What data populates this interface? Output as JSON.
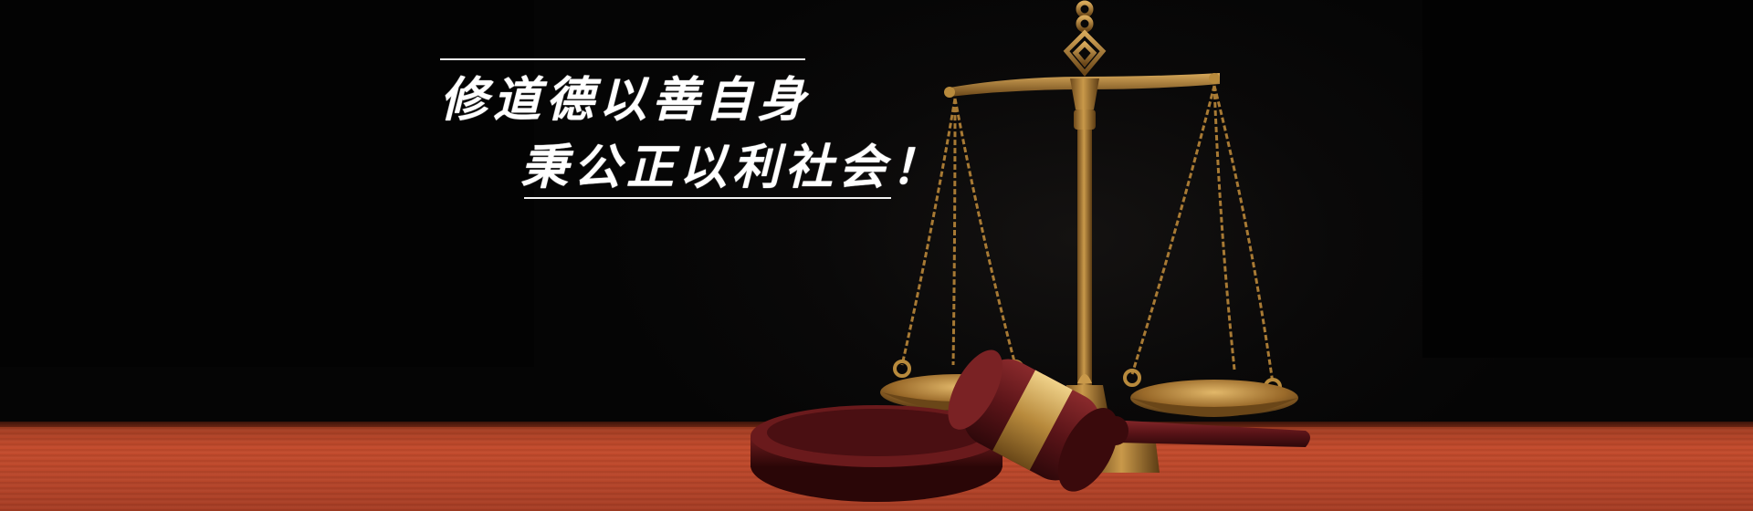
{
  "banner": {
    "slogan_line_1": "修道德以善自身",
    "slogan_line_2": "秉公正以利社会！"
  },
  "scene": {
    "objects": [
      "scales-of-justice-icon",
      "judge-gavel-icon",
      "sound-block-icon",
      "wooden-table"
    ],
    "colors": {
      "background": "#000000",
      "brass": "#b8863a",
      "gavel_wood": "#5a1418",
      "table_wood": "#b8462a",
      "text": "#ffffff"
    }
  }
}
